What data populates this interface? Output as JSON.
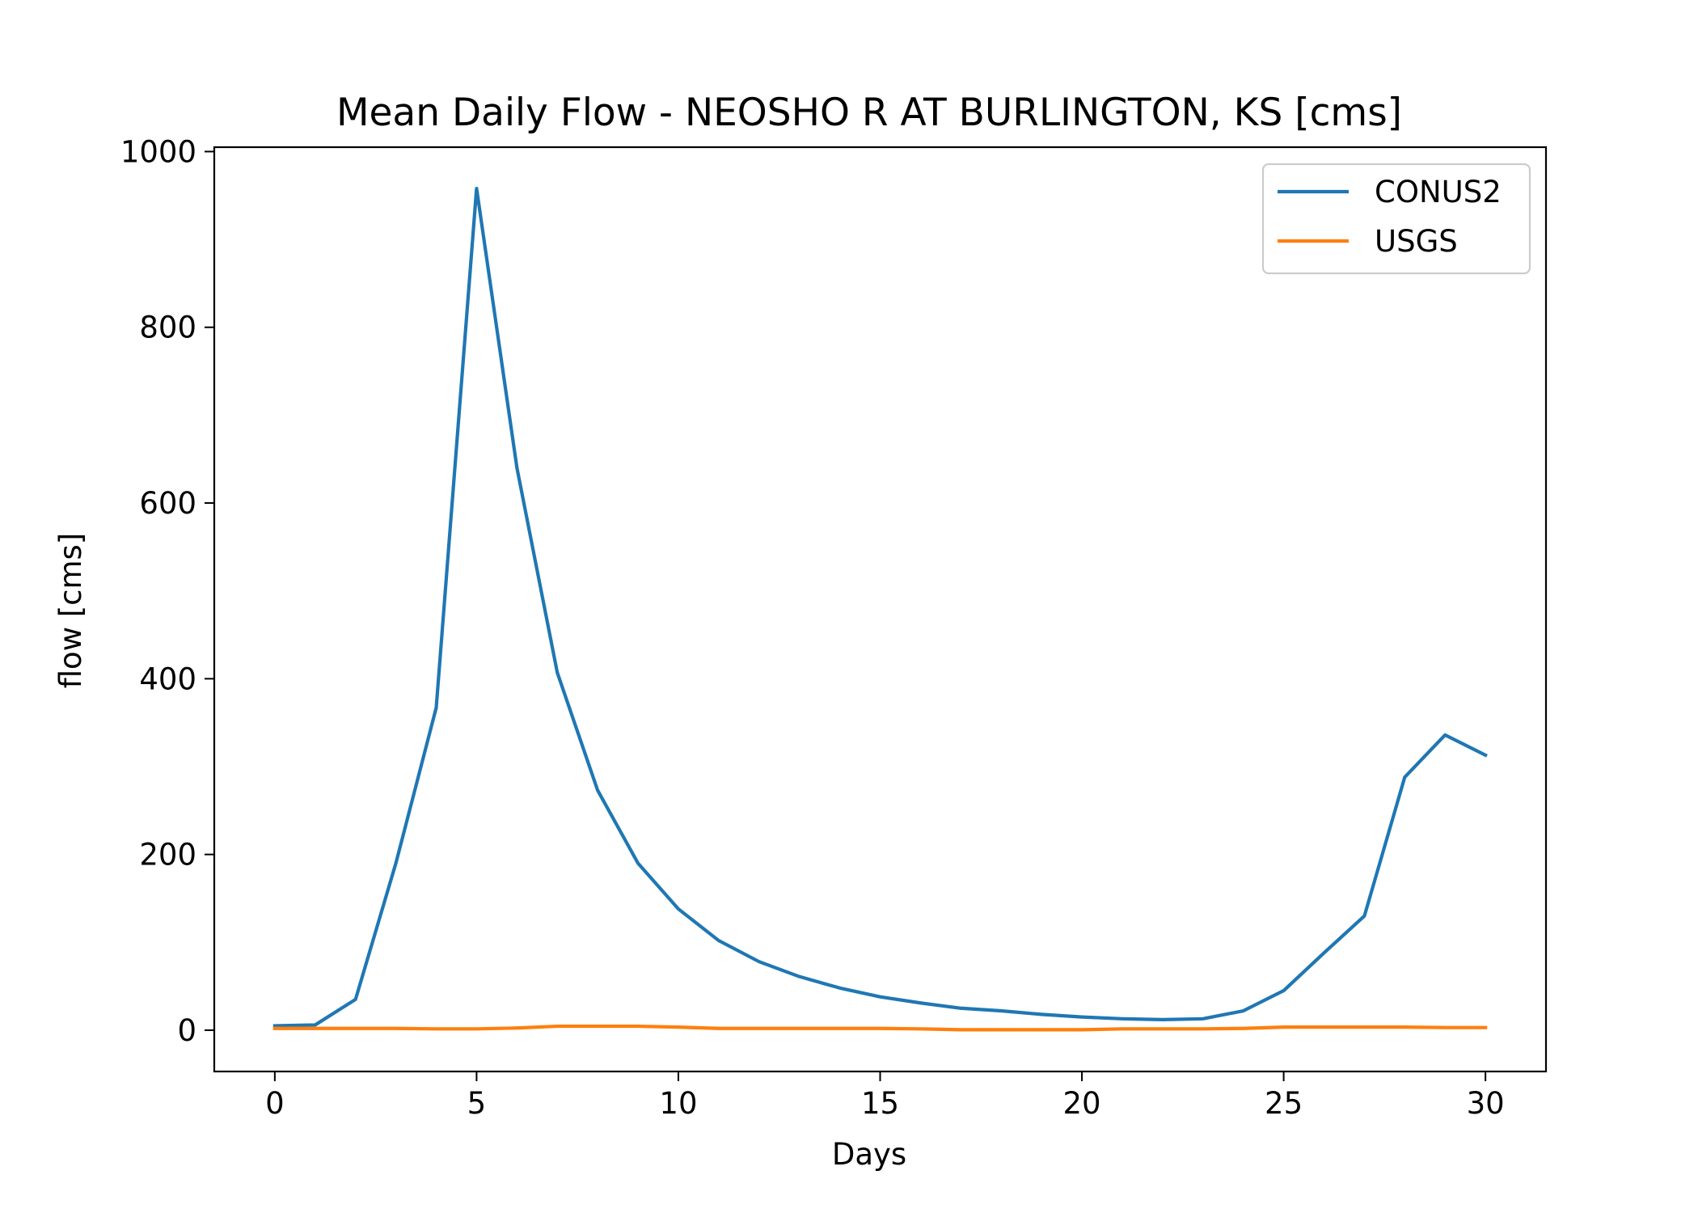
{
  "chart_data": {
    "type": "line",
    "title": "Mean Daily Flow - NEOSHO R AT BURLINGTON, KS [cms]",
    "xlabel": "Days",
    "ylabel": "flow [cms]",
    "xlim": [
      -1.5,
      31.5
    ],
    "ylim": [
      -47,
      1005
    ],
    "xticks": [
      0,
      5,
      10,
      15,
      20,
      25,
      30
    ],
    "yticks": [
      0,
      200,
      400,
      600,
      800,
      1000
    ],
    "grid": false,
    "legend_position": "top-right",
    "x": [
      0,
      1,
      2,
      3,
      4,
      5,
      6,
      7,
      8,
      9,
      10,
      11,
      12,
      13,
      14,
      15,
      16,
      17,
      18,
      19,
      20,
      21,
      22,
      23,
      24,
      25,
      26,
      27,
      28,
      29,
      30
    ],
    "series": [
      {
        "name": "CONUS2",
        "color": "#1f77b4",
        "values": [
          5,
          6,
          35,
          190,
          367,
          958,
          640,
          407,
          273,
          190,
          138,
          102,
          78,
          61,
          48,
          38,
          31,
          25,
          22,
          18,
          15,
          13,
          12,
          13,
          22,
          45,
          88,
          130,
          288,
          336,
          313
        ]
      },
      {
        "name": "USGS",
        "color": "#ff7f0e",
        "values": [
          2,
          2,
          2,
          2,
          1.5,
          1.5,
          2.5,
          4.5,
          4.5,
          4.5,
          3.5,
          2,
          2,
          2,
          2,
          2,
          1.5,
          0.5,
          0.5,
          0.5,
          0.5,
          1.5,
          1.5,
          1.5,
          2,
          3.5,
          3.5,
          3.5,
          3.5,
          3,
          3
        ]
      }
    ]
  }
}
